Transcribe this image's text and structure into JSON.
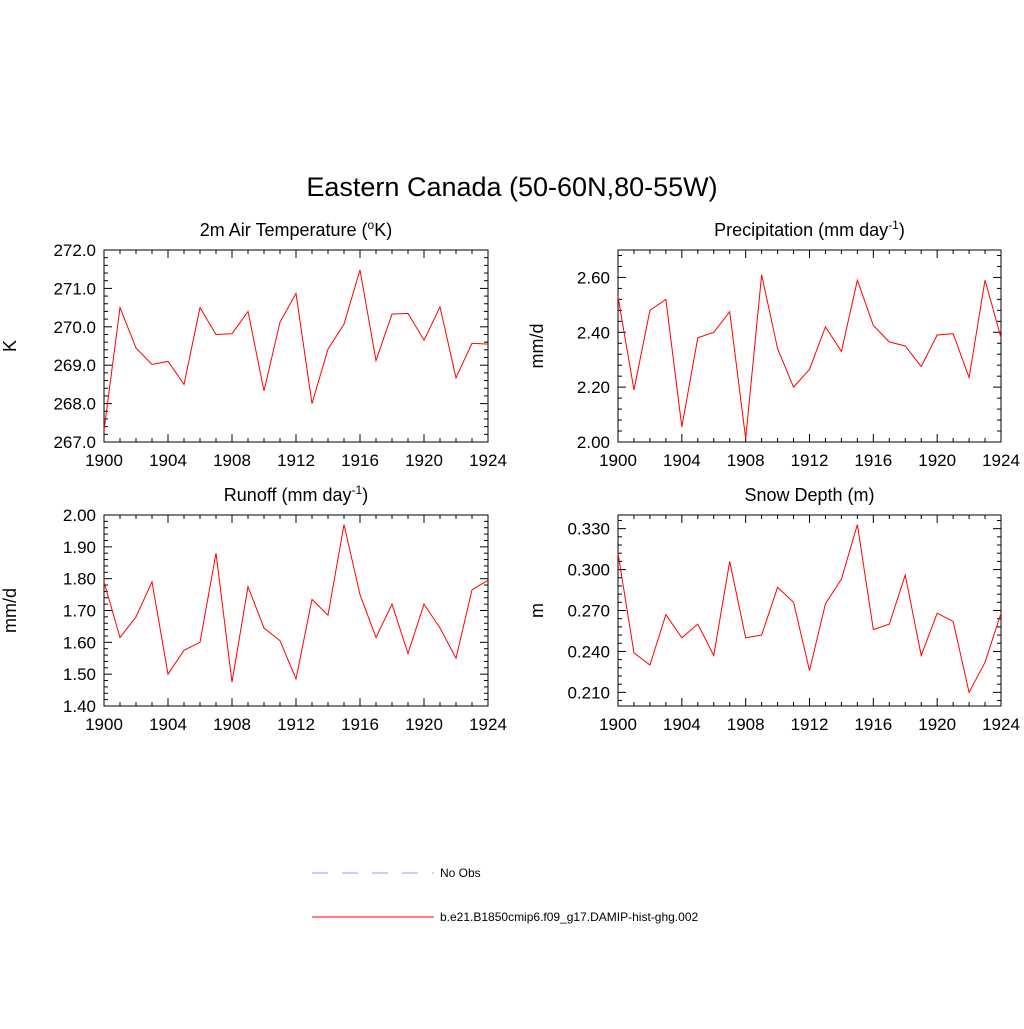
{
  "figure": {
    "title": "Eastern Canada (50-60N,80-55W)"
  },
  "legend": {
    "placement": "bottom-center",
    "entries": [
      {
        "label": "No Obs",
        "color": "#9999ff",
        "style": "dashed"
      },
      {
        "label": "b.e21.B1850cmip6.f09_g17.DAMIP-hist-ghg.002",
        "color": "#ff0000",
        "style": "solid"
      }
    ]
  },
  "chart_data": [
    {
      "type": "line",
      "title_main": "2m Air Temperature (",
      "title_sup": "o",
      "title_tail": "K)",
      "ylabel": "K",
      "xlim": [
        1900,
        1924
      ],
      "ylim": [
        267.0,
        272.0
      ],
      "x_ticks": [
        1900,
        1904,
        1908,
        1912,
        1916,
        1920,
        1924
      ],
      "y_ticks": [
        "267.0",
        "268.0",
        "269.0",
        "270.0",
        "271.0",
        "272.0"
      ],
      "grid": false,
      "color": "#ff0000",
      "x": [
        1900,
        1901,
        1902,
        1903,
        1904,
        1905,
        1906,
        1907,
        1908,
        1909,
        1910,
        1911,
        1912,
        1913,
        1914,
        1915,
        1916,
        1917,
        1918,
        1919,
        1920,
        1921,
        1922,
        1923,
        1924
      ],
      "series": [
        {
          "values": [
            267.3,
            270.5,
            269.45,
            269.02,
            269.1,
            268.5,
            270.5,
            269.8,
            269.82,
            270.4,
            268.33,
            270.12,
            270.87,
            268.0,
            269.42,
            270.07,
            271.48,
            269.12,
            270.33,
            270.35,
            269.65,
            270.52,
            268.67,
            269.57,
            269.55
          ]
        }
      ]
    },
    {
      "type": "line",
      "title_main": "Precipitation (mm day",
      "title_sup": "-1",
      "title_tail": ")",
      "ylabel": "mm/d",
      "xlim": [
        1900,
        1924
      ],
      "ylim": [
        2.0,
        2.7
      ],
      "x_ticks": [
        1900,
        1904,
        1908,
        1912,
        1916,
        1920,
        1924
      ],
      "y_ticks": [
        "2.00",
        "2.20",
        "2.40",
        "2.60"
      ],
      "grid": false,
      "color": "#ff0000",
      "x": [
        1900,
        1901,
        1902,
        1903,
        1904,
        1905,
        1906,
        1907,
        1908,
        1909,
        1910,
        1911,
        1912,
        1913,
        1914,
        1915,
        1916,
        1917,
        1918,
        1919,
        1920,
        1921,
        1922,
        1923,
        1924
      ],
      "series": [
        {
          "values": [
            2.53,
            2.19,
            2.48,
            2.52,
            2.055,
            2.38,
            2.4,
            2.475,
            2.012,
            2.61,
            2.34,
            2.2,
            2.265,
            2.42,
            2.33,
            2.59,
            2.425,
            2.365,
            2.35,
            2.275,
            2.39,
            2.395,
            2.235,
            2.59,
            2.38
          ]
        }
      ]
    },
    {
      "type": "line",
      "title_main": "Runoff (mm day",
      "title_sup": "-1",
      "title_tail": ")",
      "ylabel": "mm/d",
      "xlim": [
        1900,
        1924
      ],
      "ylim": [
        1.4,
        2.0
      ],
      "x_ticks": [
        1900,
        1904,
        1908,
        1912,
        1916,
        1920,
        1924
      ],
      "y_ticks": [
        "1.40",
        "1.50",
        "1.60",
        "1.70",
        "1.80",
        "1.90",
        "2.00"
      ],
      "grid": false,
      "color": "#ff0000",
      "x": [
        1900,
        1901,
        1902,
        1903,
        1904,
        1905,
        1906,
        1907,
        1908,
        1909,
        1910,
        1911,
        1912,
        1913,
        1914,
        1915,
        1916,
        1917,
        1918,
        1919,
        1920,
        1921,
        1922,
        1923,
        1924
      ],
      "series": [
        {
          "values": [
            1.79,
            1.615,
            1.68,
            1.79,
            1.5,
            1.575,
            1.6,
            1.88,
            1.475,
            1.775,
            1.645,
            1.605,
            1.485,
            1.735,
            1.685,
            1.97,
            1.75,
            1.615,
            1.72,
            1.565,
            1.72,
            1.645,
            1.55,
            1.765,
            1.795
          ]
        }
      ]
    },
    {
      "type": "line",
      "title_main": "Snow Depth (m)",
      "title_sup": "",
      "title_tail": "",
      "ylabel": "m",
      "xlim": [
        1900,
        1924
      ],
      "ylim": [
        0.2,
        0.34
      ],
      "x_ticks": [
        1900,
        1904,
        1908,
        1912,
        1916,
        1920,
        1924
      ],
      "y_ticks": [
        "0.210",
        "0.240",
        "0.270",
        "0.300",
        "0.330"
      ],
      "grid": false,
      "color": "#ff0000",
      "x": [
        1900,
        1901,
        1902,
        1903,
        1904,
        1905,
        1906,
        1907,
        1908,
        1909,
        1910,
        1911,
        1912,
        1913,
        1914,
        1915,
        1916,
        1917,
        1918,
        1919,
        1920,
        1921,
        1922,
        1923,
        1924
      ],
      "series": [
        {
          "values": [
            0.312,
            0.239,
            0.23,
            0.267,
            0.25,
            0.26,
            0.237,
            0.306,
            0.25,
            0.252,
            0.287,
            0.276,
            0.226,
            0.275,
            0.293,
            0.333,
            0.256,
            0.26,
            0.296,
            0.237,
            0.268,
            0.262,
            0.21,
            0.232,
            0.268
          ]
        }
      ]
    }
  ]
}
